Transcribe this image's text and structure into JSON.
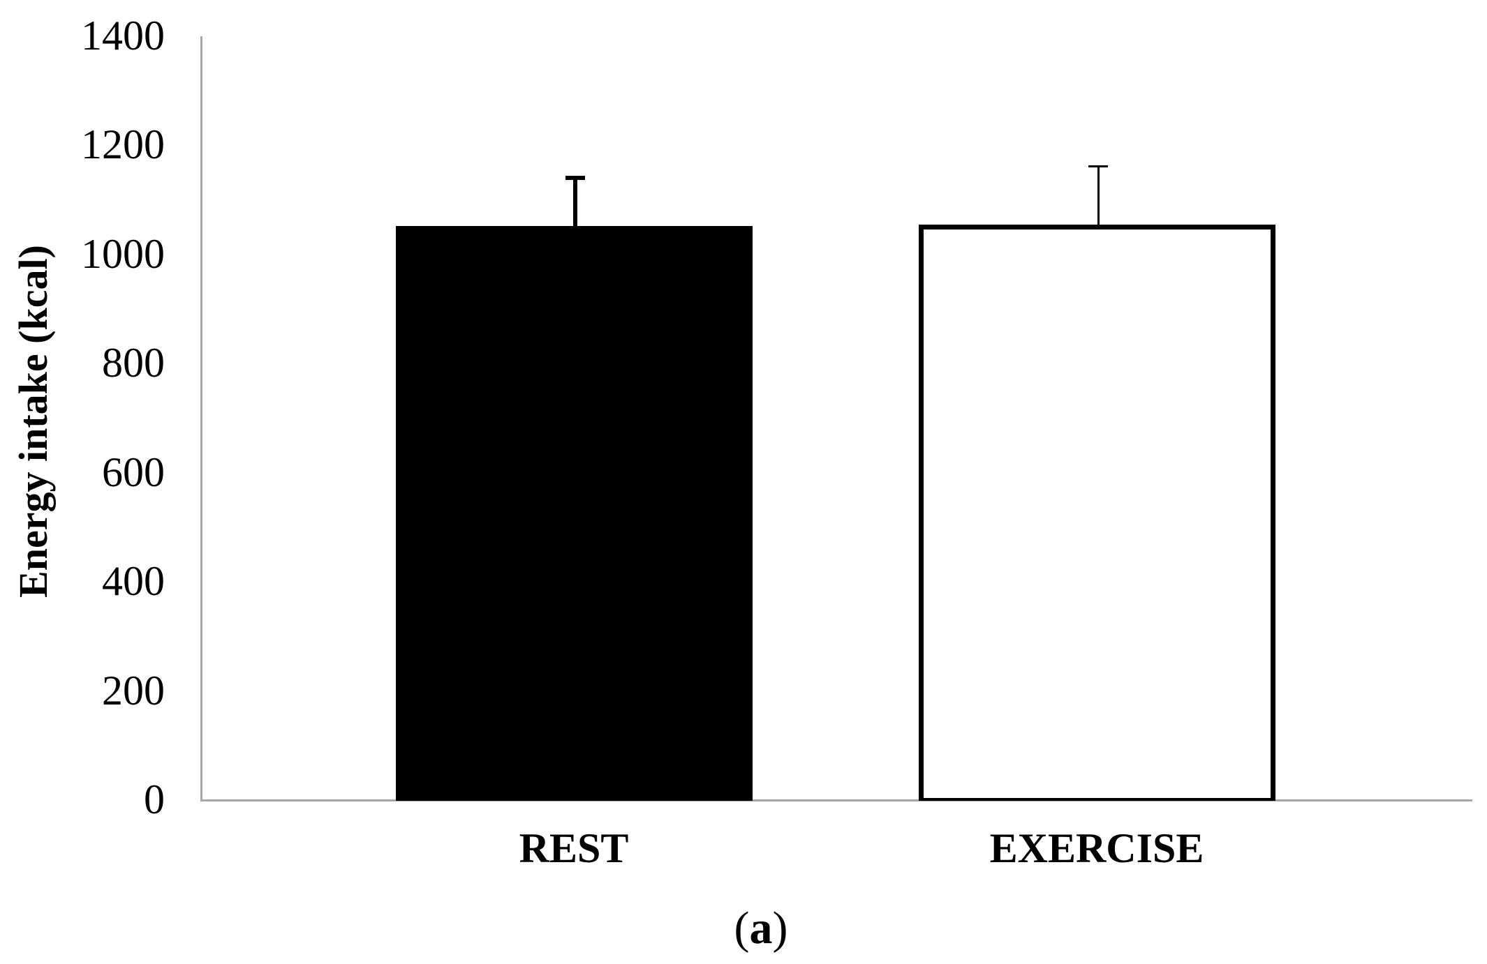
{
  "chart_data": {
    "type": "bar",
    "title": "",
    "xlabel": "",
    "ylabel": "Energy intake (kcal)",
    "categories": [
      "REST",
      "EXERCISE"
    ],
    "values": [
      1052,
      1055
    ],
    "error_bars": [
      89,
      107
    ],
    "ylim": [
      0,
      1400
    ],
    "yticks": [
      0,
      200,
      400,
      600,
      800,
      1000,
      1200,
      1400
    ],
    "grid": false,
    "legend": null,
    "bar_styles": [
      {
        "fill": "#000000",
        "edge": "#000000"
      },
      {
        "fill": "#ffffff",
        "edge": "#000000"
      }
    ],
    "axis_color": "#a6a6a6",
    "panel_label": "(a)"
  },
  "labels": {
    "ylabel": "Energy intake (kcal)",
    "panel_open": "(",
    "panel_letter": "a",
    "panel_close": ")"
  }
}
